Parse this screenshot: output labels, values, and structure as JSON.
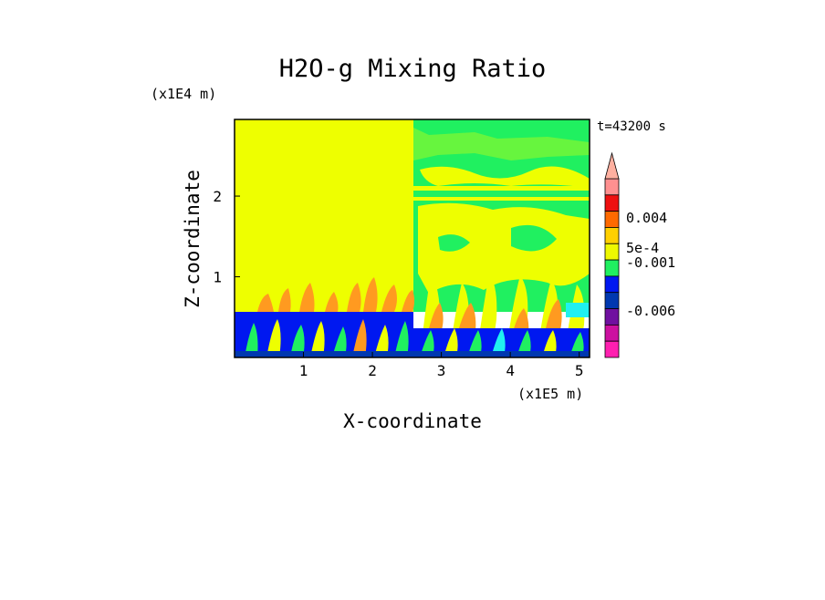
{
  "chart_data": {
    "type": "heatmap",
    "title": "H2O-g Mixing Ratio",
    "xlabel": "X-coordinate",
    "ylabel": "Z-coordinate",
    "x_units": "(x1E5 m)",
    "y_units": "(x1E4 m)",
    "time_label": "t=43200 s",
    "xlim": [
      0,
      5.15
    ],
    "ylim": [
      0,
      2.95
    ],
    "x_ticks": [
      "1",
      "2",
      "3",
      "4",
      "5"
    ],
    "y_ticks": [
      "1",
      "2"
    ],
    "colorbar": {
      "labels": [
        "0.004",
        "5e-4",
        "-0.001",
        "-0.006"
      ],
      "colors": [
        "#ff9090",
        "#ee1010",
        "#ff6a00",
        "#ffd000",
        "#eef800",
        "#20f060",
        "#0018f0",
        "#0038b0",
        "#7010a0",
        "#cc10a0",
        "#ff20b0"
      ],
      "extend": "max"
    },
    "regions": [
      {
        "description": "left half upper",
        "color": "#eeff00",
        "x": [
          0,
          2.58
        ],
        "z": [
          0.6,
          2.95
        ]
      },
      {
        "description": "right half upper",
        "color": "#20f060",
        "x": [
          2.58,
          5.15
        ],
        "z": [
          0.6,
          2.95
        ]
      },
      {
        "description": "boundary layer",
        "color": "#0018f0",
        "x": [
          0,
          5.15
        ],
        "z": [
          0,
          0.6
        ]
      }
    ]
  }
}
